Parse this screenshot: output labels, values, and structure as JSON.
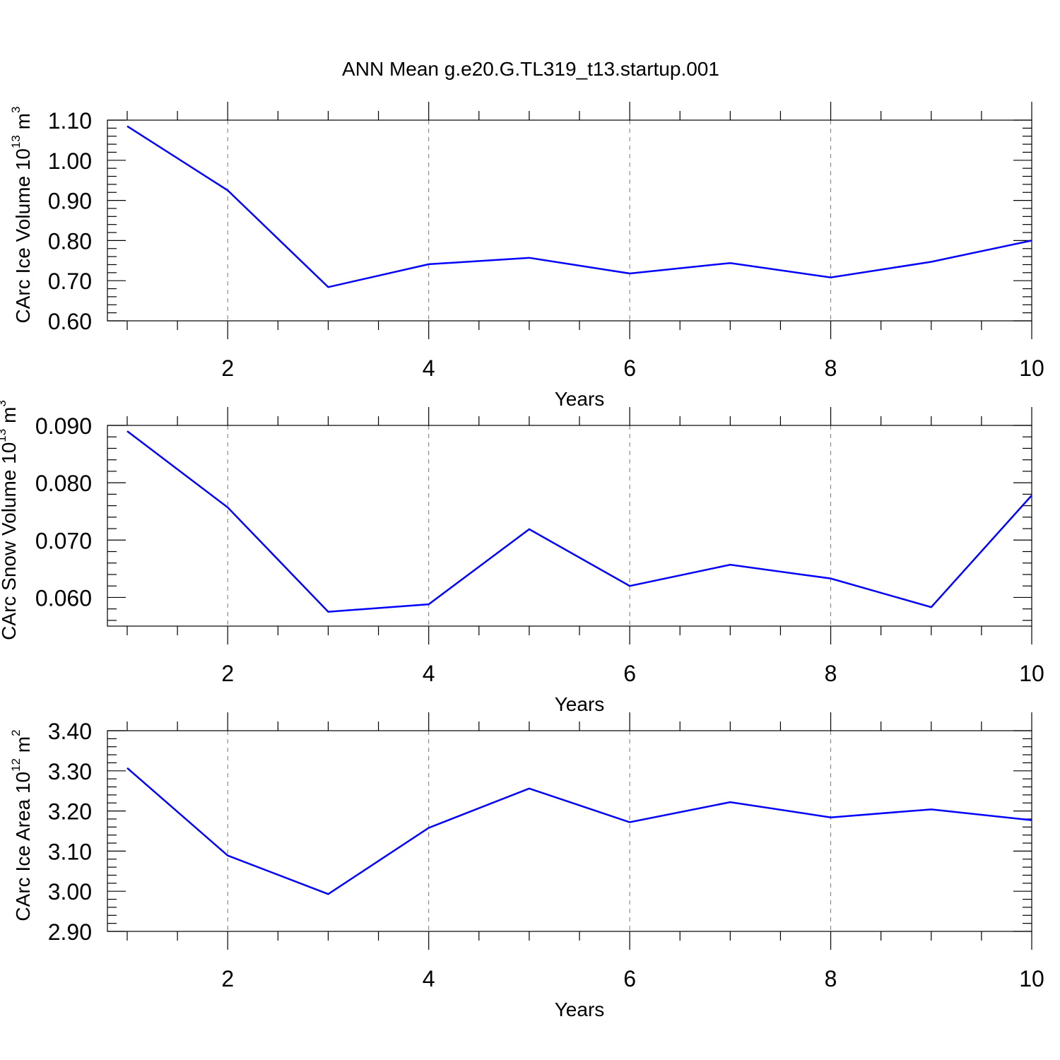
{
  "title": "ANN Mean g.e20.G.TL319_t13.startup.001",
  "chart_data": [
    {
      "type": "line",
      "xlabel": "Years",
      "ylabel": {
        "main": "CArc Ice Volume 10",
        "exp": "13",
        "unit": " m",
        "unit_exp": "3"
      },
      "x": [
        1,
        2,
        3,
        4,
        5,
        6,
        7,
        8,
        9,
        10
      ],
      "values": [
        1.085,
        0.925,
        0.684,
        0.741,
        0.757,
        0.718,
        0.744,
        0.708,
        0.747,
        0.8
      ],
      "xlim": [
        1,
        10
      ],
      "ylim": [
        0.6,
        1.1
      ],
      "xticks": [
        "2",
        "4",
        "6",
        "8",
        "10"
      ],
      "yticks": [
        "0.60",
        "0.70",
        "0.80",
        "0.90",
        "1.00",
        "1.10"
      ],
      "grid": "vertical-dashed"
    },
    {
      "type": "line",
      "xlabel": "Years",
      "ylabel": {
        "main": "CArc Snow Volume 10",
        "exp": "13",
        "unit": " m",
        "unit_exp": "3"
      },
      "x": [
        1,
        2,
        3,
        4,
        5,
        6,
        7,
        8,
        9,
        10
      ],
      "values": [
        0.089,
        0.0757,
        0.0575,
        0.0588,
        0.0719,
        0.062,
        0.0657,
        0.0633,
        0.0583,
        0.0778
      ],
      "xlim": [
        1,
        10
      ],
      "ylim": [
        0.055,
        0.09
      ],
      "xticks": [
        "2",
        "4",
        "6",
        "8",
        "10"
      ],
      "yticks": [
        "0.060",
        "0.070",
        "0.080",
        "0.090"
      ],
      "grid": "vertical-dashed"
    },
    {
      "type": "line",
      "xlabel": "Years",
      "ylabel": {
        "main": "CArc Ice Area 10",
        "exp": "12",
        "unit": " m",
        "unit_exp": "2"
      },
      "x": [
        1,
        2,
        3,
        4,
        5,
        6,
        7,
        8,
        9,
        10
      ],
      "values": [
        3.307,
        3.089,
        2.993,
        3.158,
        3.256,
        3.172,
        3.222,
        3.184,
        3.204,
        3.177
      ],
      "xlim": [
        1,
        10
      ],
      "ylim": [
        2.9,
        3.4
      ],
      "xticks": [
        "2",
        "4",
        "6",
        "8",
        "10"
      ],
      "yticks": [
        "2.90",
        "3.00",
        "3.10",
        "3.20",
        "3.30",
        "3.40"
      ],
      "grid": "vertical-dashed"
    }
  ],
  "colors": {
    "series": "#0000ff",
    "frame": "#000000",
    "grid": "#777777"
  }
}
